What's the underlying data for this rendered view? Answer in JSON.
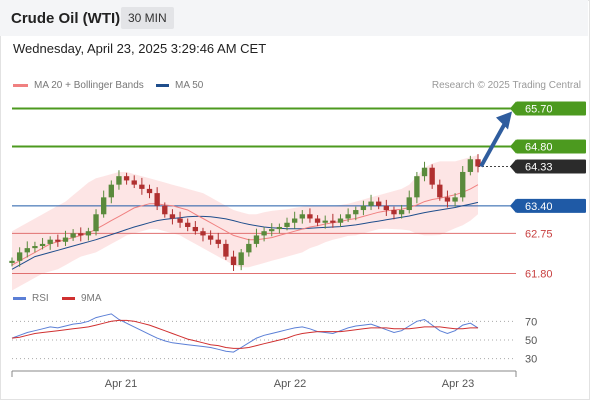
{
  "header": {
    "title": "Crude Oil (WTI)",
    "timeframe": "30 MIN"
  },
  "datetime": "Wednesday, April 23, 2025 3:29:46 AM CET",
  "legend": {
    "ma20_label": "MA 20 + Bollinger Bands",
    "ma50_label": "MA 50",
    "credit": "Research © 2025 Trading Central"
  },
  "rsi_legend": {
    "rsi_label": "RSI",
    "ma_label": "9MA"
  },
  "colors": {
    "ma20": "#f08080",
    "ma50": "#1f4e8c",
    "bollinger_fill": "#fde0e0",
    "up_candle": "#5a8a3c",
    "down_candle": "#b03030",
    "resistance": "#4c9a1f",
    "pivot": "#1f5aa6",
    "support": "#e07070",
    "last_price_bg": "#2b2b2b",
    "rsi": "#5b7fd6",
    "rsi_ma": "#d03030",
    "arrow": "#2f5d9e"
  },
  "chart_data": {
    "type": "candlestick",
    "ylim": [
      61.6,
      65.9
    ],
    "x_tick_labels": [
      "Apr 21",
      "Apr 22",
      "Apr 23"
    ],
    "levels": [
      {
        "value": 65.7,
        "label": "65.70",
        "kind": "resistance"
      },
      {
        "value": 64.8,
        "label": "64.80",
        "kind": "resistance"
      },
      {
        "value": 64.33,
        "label": "64.33",
        "kind": "last"
      },
      {
        "value": 63.4,
        "label": "63.40",
        "kind": "pivot"
      },
      {
        "value": 62.75,
        "label": "62.75",
        "kind": "support"
      },
      {
        "value": 61.8,
        "label": "61.80",
        "kind": "support"
      }
    ],
    "close": [
      62.1,
      62.3,
      62.4,
      62.45,
      62.5,
      62.6,
      62.55,
      62.65,
      62.75,
      62.7,
      62.8,
      63.2,
      63.6,
      63.9,
      64.1,
      64.0,
      63.9,
      63.8,
      63.7,
      63.4,
      63.2,
      63.1,
      63.0,
      62.9,
      62.8,
      62.7,
      62.6,
      62.5,
      62.2,
      62.0,
      62.3,
      62.5,
      62.7,
      62.8,
      62.85,
      62.9,
      63.0,
      63.1,
      63.2,
      63.1,
      63.0,
      63.05,
      63.0,
      63.1,
      63.2,
      63.3,
      63.4,
      63.5,
      63.4,
      63.3,
      63.2,
      63.3,
      63.6,
      64.1,
      64.3,
      63.9,
      63.6,
      63.5,
      63.6,
      64.2,
      64.5,
      64.33
    ],
    "ma20": [
      62.0,
      62.1,
      62.2,
      62.3,
      62.4,
      62.5,
      62.55,
      62.6,
      62.65,
      62.7,
      62.75,
      62.85,
      62.95,
      63.05,
      63.15,
      63.25,
      63.35,
      63.4,
      63.45,
      63.45,
      63.42,
      63.4,
      63.35,
      63.3,
      63.2,
      63.1,
      63.0,
      62.9,
      62.8,
      62.7,
      62.65,
      62.6,
      62.6,
      62.62,
      62.65,
      62.7,
      62.75,
      62.8,
      62.85,
      62.9,
      62.93,
      62.97,
      63.0,
      63.03,
      63.07,
      63.1,
      63.15,
      63.2,
      63.25,
      63.28,
      63.3,
      63.32,
      63.36,
      63.42,
      63.5,
      63.55,
      63.58,
      63.62,
      63.66,
      63.72,
      63.8,
      63.9
    ],
    "ma50": [
      61.9,
      62.0,
      62.1,
      62.2,
      62.25,
      62.3,
      62.35,
      62.4,
      62.45,
      62.5,
      62.55,
      62.6,
      62.66,
      62.72,
      62.78,
      62.84,
      62.9,
      62.95,
      63.0,
      63.05,
      63.08,
      63.1,
      63.12,
      63.14,
      63.15,
      63.15,
      63.14,
      63.12,
      63.09,
      63.05,
      63.0,
      62.96,
      62.93,
      62.9,
      62.88,
      62.87,
      62.86,
      62.86,
      62.86,
      62.87,
      62.88,
      62.89,
      62.9,
      62.91,
      62.93,
      62.95,
      62.98,
      63.01,
      63.04,
      63.07,
      63.1,
      63.13,
      63.16,
      63.2,
      63.24,
      63.27,
      63.3,
      63.33,
      63.36,
      63.4,
      63.44,
      63.48
    ],
    "bb_upper": [
      62.8,
      62.9,
      63.0,
      63.1,
      63.2,
      63.3,
      63.4,
      63.5,
      63.65,
      63.8,
      63.95,
      64.05,
      64.1,
      64.15,
      64.2,
      64.2,
      64.15,
      64.1,
      64.05,
      64.0,
      63.95,
      63.9,
      63.85,
      63.8,
      63.75,
      63.7,
      63.6,
      63.5,
      63.4,
      63.3,
      63.25,
      63.2,
      63.2,
      63.25,
      63.28,
      63.3,
      63.32,
      63.35,
      63.38,
      63.4,
      63.4,
      63.4,
      63.4,
      63.42,
      63.45,
      63.5,
      63.55,
      63.6,
      63.65,
      63.7,
      63.75,
      63.8,
      63.9,
      64.1,
      64.3,
      64.4,
      64.45,
      64.45,
      64.45,
      64.5,
      64.55,
      64.6
    ],
    "bb_lower": [
      61.4,
      61.5,
      61.6,
      61.7,
      61.8,
      61.85,
      61.9,
      62.0,
      62.1,
      62.2,
      62.25,
      62.3,
      62.4,
      62.5,
      62.6,
      62.7,
      62.75,
      62.8,
      62.85,
      62.85,
      62.8,
      62.75,
      62.7,
      62.6,
      62.5,
      62.4,
      62.3,
      62.2,
      62.1,
      62.0,
      61.95,
      61.95,
      62.0,
      62.05,
      62.1,
      62.15,
      62.2,
      62.25,
      62.3,
      62.4,
      62.46,
      62.54,
      62.6,
      62.64,
      62.69,
      62.7,
      62.75,
      62.8,
      62.85,
      62.86,
      62.85,
      62.84,
      62.82,
      62.74,
      62.7,
      62.7,
      62.71,
      62.79,
      62.87,
      62.94,
      63.05,
      63.2
    ],
    "rsi": [
      52,
      55,
      58,
      60,
      62,
      64,
      63,
      65,
      67,
      68,
      70,
      74,
      76,
      78,
      72,
      68,
      64,
      60,
      56,
      52,
      49,
      47,
      46,
      45,
      44,
      43,
      42,
      40,
      38,
      37,
      42,
      47,
      52,
      55,
      57,
      59,
      61,
      63,
      64,
      62,
      59,
      58,
      57,
      60,
      63,
      65,
      66,
      67,
      64,
      61,
      58,
      60,
      65,
      70,
      72,
      66,
      60,
      57,
      60,
      66,
      68,
      63
    ],
    "rsi_ma": [
      52,
      53,
      55,
      57,
      58,
      59,
      60,
      61,
      62,
      63,
      64,
      66,
      68,
      70,
      71,
      71,
      70,
      68,
      66,
      63,
      60,
      57,
      54,
      51,
      49,
      47,
      45,
      44,
      42,
      41,
      41,
      42,
      44,
      46,
      48,
      50,
      52,
      55,
      57,
      58,
      59,
      59,
      59,
      59,
      60,
      61,
      62,
      63,
      63,
      63,
      62,
      62,
      62,
      63,
      64,
      64,
      64,
      63,
      62,
      62,
      63,
      63
    ],
    "rsi_ticks": [
      "70",
      "50",
      "30"
    ]
  }
}
